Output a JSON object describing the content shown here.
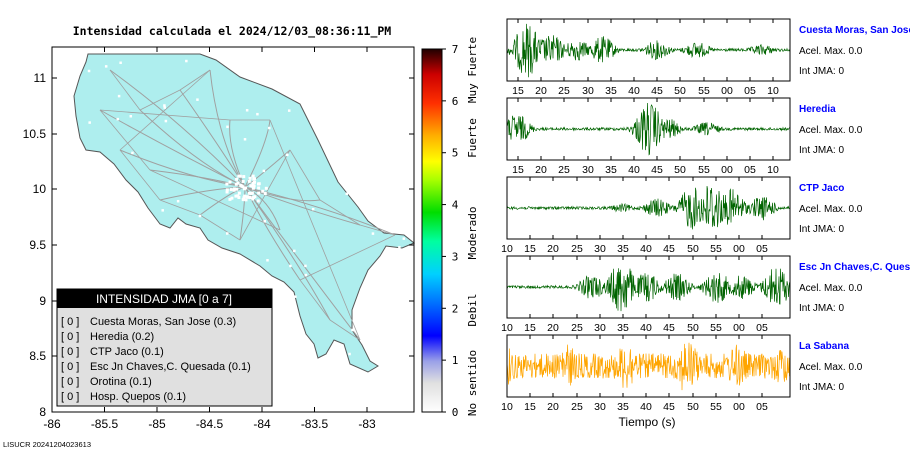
{
  "header": {
    "title": "Intensidad calculada el 2024/12/03_08:36:11_PM"
  },
  "footer": {
    "id": "LISUCR 20241204023613"
  },
  "colors": {
    "land": "#aeeeee",
    "roads": "#a0a0a0",
    "wave_green": "#006400",
    "wave_orange": "#ffa500",
    "station_link": "#0000ff"
  },
  "map": {
    "x_ticks": [
      "-86",
      "-85.5",
      "-85",
      "-84.5",
      "-84",
      "-83.5",
      "-83"
    ],
    "y_ticks": [
      "11",
      "10.5",
      "10",
      "9.5",
      "9",
      "8.5",
      "8"
    ]
  },
  "colorbar": {
    "ticks": [
      "0",
      "1",
      "2",
      "3",
      "4",
      "5",
      "6",
      "7"
    ],
    "levels": [
      "No sentido",
      "Debil",
      "Moderado",
      "Fuerte",
      "Muy Fuerte"
    ]
  },
  "legend": {
    "title": "INTENSIDAD JMA [0 a 7]",
    "items": [
      {
        "level": "[ 0 ]",
        "name": "Cuesta Moras, San Jose (0.3)"
      },
      {
        "level": "[ 0 ]",
        "name": "Heredia (0.2)"
      },
      {
        "level": "[ 0 ]",
        "name": "CTP Jaco (0.1)"
      },
      {
        "level": "[ 0 ]",
        "name": "Esc Jn Chaves,C. Quesada (0.1)"
      },
      {
        "level": "[ 0 ]",
        "name": "Orotina (0.1)"
      },
      {
        "level": "[ 0 ]",
        "name": "Hosp. Quepos (0.1)"
      }
    ]
  },
  "chart_data": {
    "type": "line",
    "xlabel": "Tiempo (s)",
    "panels": [
      {
        "station": "Cuesta Moras, San Jose",
        "acel": "Acel. Max. 0.0",
        "int": "Int JMA: 0",
        "color": "#006400",
        "ticks": [
          "15",
          "20",
          "25",
          "30",
          "35",
          "40",
          "45",
          "50",
          "55",
          "00",
          "05",
          "10"
        ],
        "bursts": [
          [
            20,
            1.0
          ],
          [
            35,
            0.45
          ],
          [
            45,
            0.55
          ],
          [
            70,
            0.4
          ],
          [
            95,
            0.5
          ],
          [
            150,
            0.35
          ],
          [
            190,
            0.3
          ],
          [
            255,
            0.2
          ]
        ]
      },
      {
        "station": "Heredia",
        "acel": "Acel. Max. 0.0",
        "int": "Int JMA: 0",
        "color": "#006400",
        "ticks": [
          "15",
          "20",
          "25",
          "30",
          "35",
          "40",
          "45",
          "50",
          "55",
          "00",
          "05",
          "10"
        ],
        "bursts": [
          [
            10,
            0.55
          ],
          [
            142,
            1.0
          ],
          [
            160,
            0.4
          ],
          [
            200,
            0.25
          ]
        ]
      },
      {
        "station": "CTP Jaco",
        "acel": "Acel. Max. 0.0",
        "int": "Int JMA: 0",
        "color": "#006400",
        "ticks": [
          "10",
          "15",
          "20",
          "25",
          "30",
          "35",
          "40",
          "45",
          "50",
          "55",
          "00",
          "05"
        ],
        "bursts": [
          [
            115,
            0.15
          ],
          [
            150,
            0.35
          ],
          [
            185,
            0.8
          ],
          [
            205,
            1.0
          ],
          [
            225,
            0.7
          ],
          [
            255,
            0.45
          ]
        ]
      },
      {
        "station": "Esc Jn Chaves,C. Ques",
        "acel": "Acel. Max. 0.0",
        "int": "Int JMA: 0",
        "color": "#006400",
        "ticks": [
          "10",
          "15",
          "20",
          "25",
          "30",
          "35",
          "40",
          "45",
          "50",
          "55",
          "00",
          "05"
        ],
        "bursts": [
          [
            85,
            0.45
          ],
          [
            115,
            1.0
          ],
          [
            140,
            0.55
          ],
          [
            170,
            0.5
          ],
          [
            210,
            0.6
          ],
          [
            235,
            0.45
          ],
          [
            270,
            0.8
          ]
        ]
      },
      {
        "station": "La Sabana",
        "acel": "Acel. Max. 0.0",
        "int": "Int JMA: 0",
        "color": "#ffa500",
        "ticks": [
          "10",
          "15",
          "20",
          "25",
          "30",
          "35",
          "40",
          "45",
          "50",
          "55",
          "00",
          "05"
        ],
        "bursts": [
          [
            0,
            0.7
          ],
          [
            60,
            0.8
          ],
          [
            120,
            0.9
          ],
          [
            180,
            1.0
          ],
          [
            230,
            0.8
          ],
          [
            275,
            0.7
          ]
        ]
      }
    ]
  }
}
